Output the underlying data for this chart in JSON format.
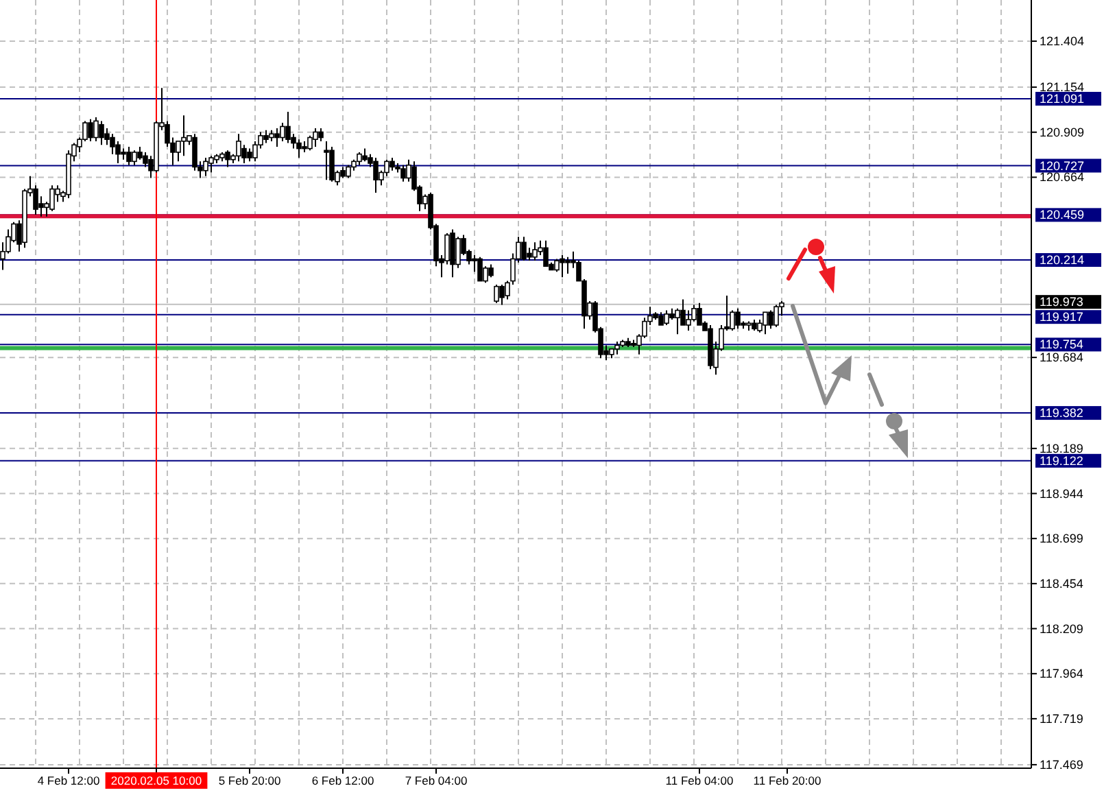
{
  "chart_data": {
    "type": "candlestick",
    "grid": true,
    "ylim": [
      117.45,
      121.628
    ],
    "yticks": [
      121.404,
      121.154,
      120.909,
      120.664,
      119.684,
      119.189,
      118.944,
      118.699,
      118.454,
      118.209,
      117.964,
      117.719,
      117.469
    ],
    "categories": [
      null,
      null,
      null,
      null,
      null,
      null,
      null,
      null,
      null,
      null,
      null,
      null,
      "4 Feb 12:00",
      null,
      null,
      null,
      null,
      null,
      null,
      null,
      null,
      null,
      null,
      null,
      null,
      null,
      null,
      null,
      "2020.02.05 10:00",
      null,
      null,
      null,
      null,
      null,
      null,
      null,
      null,
      null,
      null,
      null,
      null,
      null,
      null,
      null,
      null,
      "5 Feb 20:00",
      null,
      null,
      null,
      null,
      null,
      null,
      null,
      null,
      null,
      null,
      null,
      null,
      null,
      null,
      null,
      null,
      "6 Feb 12:00",
      null,
      null,
      null,
      null,
      null,
      null,
      null,
      null,
      null,
      null,
      null,
      null,
      null,
      null,
      null,
      null,
      "7 Feb 04:00",
      null,
      null,
      null,
      null,
      null,
      null,
      null,
      null,
      null,
      null,
      null,
      null,
      null,
      null,
      null,
      null,
      null,
      null,
      null,
      null,
      null,
      null,
      null,
      null,
      null,
      null,
      null,
      null,
      null,
      null,
      null,
      null,
      null,
      null,
      null,
      null,
      null,
      null,
      null,
      null,
      null,
      null,
      null,
      null,
      null,
      null,
      null,
      "11 Feb 04:00",
      null,
      null,
      null,
      null,
      null,
      null,
      null,
      null,
      null,
      null,
      null,
      null,
      null,
      null,
      null,
      "11 Feb 20:00",
      null,
      null,
      null,
      null,
      null,
      null,
      null,
      null,
      null,
      null,
      null,
      null,
      null,
      null,
      null,
      null,
      null,
      null,
      null,
      null,
      null,
      null,
      null,
      null,
      null,
      null,
      null,
      null,
      null,
      null,
      null,
      null,
      null,
      null,
      null,
      null,
      null,
      null,
      null,
      null,
      null,
      null,
      null,
      null
    ],
    "ohlc": [
      [
        120.22,
        120.31,
        120.16,
        120.26
      ],
      [
        120.26,
        120.38,
        120.25,
        120.34
      ],
      [
        120.32,
        120.42,
        120.31,
        120.41
      ],
      [
        120.41,
        120.43,
        120.26,
        120.3
      ],
      [
        120.31,
        120.6,
        120.28,
        120.59
      ],
      [
        120.58,
        120.67,
        120.56,
        120.6
      ],
      [
        120.6,
        120.62,
        120.46,
        120.49
      ],
      [
        120.52,
        120.56,
        120.45,
        120.5
      ],
      [
        120.5,
        120.53,
        120.45,
        120.52
      ],
      [
        120.49,
        120.62,
        120.48,
        120.6
      ],
      [
        120.57,
        120.62,
        120.53,
        120.6
      ],
      [
        120.56,
        120.59,
        120.53,
        120.58
      ],
      [
        120.57,
        120.81,
        120.55,
        120.79
      ],
      [
        120.78,
        120.85,
        120.75,
        120.84
      ],
      [
        120.83,
        120.88,
        120.8,
        120.87
      ],
      [
        120.87,
        120.97,
        120.86,
        120.96
      ],
      [
        120.96,
        120.98,
        120.86,
        120.88
      ],
      [
        120.88,
        120.99,
        120.86,
        120.97
      ],
      [
        120.95,
        120.97,
        120.84,
        120.88
      ],
      [
        120.9,
        120.93,
        120.84,
        120.87
      ],
      [
        120.88,
        120.9,
        120.79,
        120.83
      ],
      [
        120.84,
        120.86,
        120.74,
        120.79
      ],
      [
        120.8,
        120.82,
        120.76,
        120.79
      ],
      [
        120.8,
        120.83,
        120.73,
        120.75
      ],
      [
        120.75,
        120.81,
        120.73,
        120.8
      ],
      [
        120.8,
        120.83,
        120.76,
        120.77
      ],
      [
        120.78,
        120.8,
        120.72,
        120.74
      ],
      [
        120.76,
        120.78,
        120.66,
        120.7
      ],
      [
        120.7,
        120.97,
        120.69,
        120.96
      ],
      [
        120.94,
        121.15,
        120.92,
        120.96
      ],
      [
        120.95,
        120.97,
        120.83,
        120.85
      ],
      [
        120.85,
        120.88,
        120.73,
        120.8
      ],
      [
        120.8,
        120.86,
        120.75,
        120.86
      ],
      [
        120.86,
        121.0,
        120.78,
        120.88
      ],
      [
        120.86,
        120.89,
        120.84,
        120.89
      ],
      [
        120.88,
        120.9,
        120.7,
        120.72
      ],
      [
        120.72,
        120.75,
        120.66,
        120.7
      ],
      [
        120.7,
        120.77,
        120.67,
        120.75
      ],
      [
        120.74,
        120.78,
        120.69,
        120.77
      ],
      [
        120.76,
        120.79,
        120.74,
        120.78
      ],
      [
        120.77,
        120.8,
        120.75,
        120.79
      ],
      [
        120.8,
        120.81,
        120.72,
        120.76
      ],
      [
        120.76,
        120.79,
        120.74,
        120.78
      ],
      [
        120.78,
        120.9,
        120.75,
        120.86
      ],
      [
        120.82,
        120.84,
        120.74,
        120.77
      ],
      [
        120.8,
        120.82,
        120.75,
        120.77
      ],
      [
        120.77,
        120.86,
        120.75,
        120.84
      ],
      [
        120.84,
        120.91,
        120.82,
        120.89
      ],
      [
        120.89,
        120.92,
        120.85,
        120.87
      ],
      [
        120.88,
        120.92,
        120.86,
        120.9
      ],
      [
        120.9,
        120.93,
        120.83,
        120.88
      ],
      [
        120.88,
        120.96,
        120.86,
        120.94
      ],
      [
        120.94,
        121.02,
        120.85,
        120.87
      ],
      [
        120.88,
        120.9,
        120.82,
        120.85
      ],
      [
        120.85,
        120.87,
        120.77,
        120.82
      ],
      [
        120.83,
        120.86,
        120.8,
        120.82
      ],
      [
        120.82,
        120.89,
        120.81,
        120.88
      ],
      [
        120.87,
        120.93,
        120.83,
        120.91
      ],
      [
        120.91,
        120.93,
        120.86,
        120.88
      ],
      [
        120.81,
        120.86,
        120.65,
        120.8
      ],
      [
        120.81,
        120.83,
        120.64,
        120.65
      ],
      [
        120.64,
        120.7,
        120.62,
        120.69
      ],
      [
        120.7,
        120.72,
        120.66,
        120.67
      ],
      [
        120.67,
        120.73,
        120.66,
        120.72
      ],
      [
        120.72,
        120.76,
        120.7,
        120.75
      ],
      [
        120.75,
        120.8,
        120.73,
        120.79
      ],
      [
        120.78,
        120.82,
        120.75,
        120.76
      ],
      [
        120.77,
        120.79,
        120.72,
        120.74
      ],
      [
        120.75,
        120.77,
        120.58,
        120.65
      ],
      [
        120.65,
        120.7,
        120.62,
        120.69
      ],
      [
        120.69,
        120.76,
        120.67,
        120.75
      ],
      [
        120.75,
        120.77,
        120.7,
        120.72
      ],
      [
        120.72,
        120.74,
        120.69,
        120.71
      ],
      [
        120.71,
        120.73,
        120.64,
        120.66
      ],
      [
        120.66,
        120.76,
        120.64,
        120.73
      ],
      [
        120.72,
        120.75,
        120.59,
        120.6
      ],
      [
        120.61,
        120.62,
        120.48,
        120.52
      ],
      [
        120.52,
        120.57,
        120.49,
        120.56
      ],
      [
        120.57,
        120.58,
        120.38,
        120.39
      ],
      [
        120.4,
        120.41,
        120.18,
        120.21
      ],
      [
        120.22,
        120.24,
        120.12,
        120.2
      ],
      [
        120.21,
        120.36,
        120.19,
        120.35
      ],
      [
        120.36,
        120.38,
        120.12,
        120.19
      ],
      [
        120.19,
        120.34,
        120.17,
        120.33
      ],
      [
        120.33,
        120.35,
        120.24,
        120.25
      ],
      [
        120.26,
        120.27,
        120.19,
        120.21
      ],
      [
        120.22,
        120.24,
        120.15,
        120.21
      ],
      [
        120.22,
        120.23,
        120.1,
        120.1
      ],
      [
        120.1,
        120.18,
        120.09,
        120.17
      ],
      [
        120.17,
        120.19,
        120.12,
        120.13
      ],
      [
        119.99,
        120.08,
        119.98,
        120.07
      ],
      [
        120.07,
        120.08,
        119.97,
        120.01
      ],
      [
        120.02,
        120.1,
        120.0,
        120.09
      ],
      [
        120.1,
        120.25,
        120.08,
        120.22
      ],
      [
        120.22,
        120.34,
        120.2,
        120.31
      ],
      [
        120.31,
        120.34,
        120.21,
        120.22
      ],
      [
        120.25,
        120.28,
        120.21,
        120.23
      ],
      [
        120.23,
        120.31,
        120.21,
        120.27
      ],
      [
        120.26,
        120.32,
        120.24,
        120.28
      ],
      [
        120.28,
        120.32,
        120.18,
        120.18
      ],
      [
        120.19,
        120.2,
        120.16,
        120.16
      ],
      [
        120.16,
        120.22,
        120.15,
        120.21
      ],
      [
        120.22,
        120.24,
        120.12,
        120.2
      ],
      [
        120.21,
        120.23,
        120.14,
        120.2
      ],
      [
        120.21,
        120.26,
        120.17,
        120.2
      ],
      [
        120.2,
        120.21,
        120.1,
        120.1
      ],
      [
        120.1,
        120.11,
        119.84,
        119.91
      ],
      [
        119.91,
        119.99,
        119.89,
        119.98
      ],
      [
        119.98,
        119.99,
        119.82,
        119.83
      ],
      [
        119.84,
        119.85,
        119.68,
        119.7
      ],
      [
        119.72,
        119.75,
        119.67,
        119.7
      ],
      [
        119.7,
        119.73,
        119.68,
        119.73
      ],
      [
        119.73,
        119.77,
        119.7,
        119.75
      ],
      [
        119.75,
        119.78,
        119.74,
        119.77
      ],
      [
        119.77,
        119.79,
        119.74,
        119.75
      ],
      [
        119.76,
        119.78,
        119.74,
        119.75
      ],
      [
        119.75,
        119.81,
        119.7,
        119.8
      ],
      [
        119.8,
        119.9,
        119.79,
        119.88
      ],
      [
        119.88,
        119.96,
        119.86,
        119.91
      ],
      [
        119.92,
        119.93,
        119.89,
        119.9
      ],
      [
        119.91,
        119.93,
        119.86,
        119.86
      ],
      [
        119.87,
        119.94,
        119.86,
        119.92
      ],
      [
        119.92,
        119.95,
        119.89,
        119.9
      ],
      [
        119.9,
        119.95,
        119.81,
        119.94
      ],
      [
        119.94,
        120.0,
        119.86,
        119.86
      ],
      [
        119.86,
        119.94,
        119.83,
        119.89
      ],
      [
        119.89,
        119.97,
        119.88,
        119.95
      ],
      [
        119.95,
        119.98,
        119.86,
        119.86
      ],
      [
        119.87,
        119.88,
        119.83,
        119.83
      ],
      [
        119.84,
        119.86,
        119.62,
        119.64
      ],
      [
        119.63,
        119.77,
        119.59,
        119.73
      ],
      [
        119.73,
        119.86,
        119.72,
        119.84
      ],
      [
        119.85,
        120.02,
        119.83,
        119.84
      ],
      [
        119.84,
        119.94,
        119.83,
        119.93
      ],
      [
        119.93,
        119.95,
        119.84,
        119.86
      ],
      [
        119.87,
        119.88,
        119.84,
        119.86
      ],
      [
        119.86,
        119.88,
        119.83,
        119.87
      ],
      [
        119.87,
        119.89,
        119.83,
        119.84
      ],
      [
        119.83,
        119.89,
        119.82,
        119.87
      ],
      [
        119.86,
        119.93,
        119.81,
        119.93
      ],
      [
        119.93,
        119.94,
        119.84,
        119.86
      ],
      [
        119.86,
        119.97,
        119.85,
        119.96
      ],
      [
        119.96,
        119.99,
        119.91,
        119.98
      ],
      null,
      null,
      null,
      null,
      null,
      null,
      null,
      null,
      null,
      null,
      null,
      null,
      null,
      null,
      null,
      null,
      null,
      null,
      null,
      null,
      null,
      null,
      null,
      null,
      null,
      null,
      null,
      null,
      null,
      null,
      null,
      null,
      null,
      null,
      null,
      null,
      null,
      null,
      null,
      null,
      null,
      null,
      null,
      null,
      null
    ],
    "ref_lines": [
      {
        "axis": "y",
        "value": 121.091,
        "label": "121.091",
        "color": "#000080"
      },
      {
        "axis": "y",
        "value": 120.727,
        "label": "120.727",
        "color": "#000080"
      },
      {
        "axis": "y",
        "value": 120.459,
        "label": "120.459",
        "color": "#000080"
      },
      {
        "axis": "y",
        "value": 120.214,
        "label": "120.214",
        "color": "#000080"
      },
      {
        "axis": "y",
        "value": 119.973,
        "label": "119.973",
        "color": "#c0c0c0"
      },
      {
        "axis": "y",
        "value": 119.917,
        "label": "119.917",
        "color": "#000080"
      },
      {
        "axis": "y",
        "value": 119.754,
        "label": "119.754",
        "color": "#000080"
      },
      {
        "axis": "y",
        "value": 119.382,
        "label": "119.382",
        "color": "#000080"
      },
      {
        "axis": "y",
        "value": 119.122,
        "label": "119.122",
        "color": "#000080"
      },
      {
        "axis": "y",
        "value": 120.452,
        "color": "#dc143c"
      },
      {
        "axis": "y",
        "value": 119.735,
        "color": "#32b34a"
      },
      {
        "axis": "x",
        "value": "2020.02.05 10:00",
        "color": "#ff0000"
      }
    ]
  }
}
